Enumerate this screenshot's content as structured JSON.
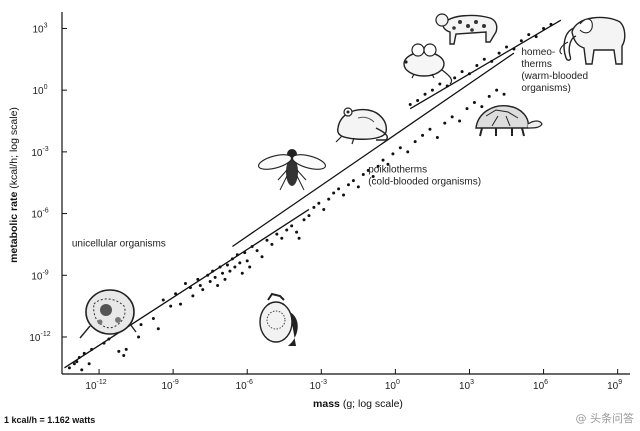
{
  "chart_data": {
    "type": "scatter",
    "title": "",
    "xlabel_bold": "mass",
    "xlabel_rest": " (g; log scale)",
    "ylabel_bold": "metabolic rate",
    "ylabel_rest": " (kcal/h; log scale)",
    "x_scale": "log",
    "y_scale": "log",
    "x_tick_exponents": [
      -12,
      -9,
      -6,
      -3,
      0,
      3,
      6,
      9
    ],
    "y_tick_exponents": [
      -12,
      -9,
      -6,
      -3,
      0,
      3
    ],
    "tick_base": "10",
    "xlim_exponent": [
      -13.5,
      9.5
    ],
    "ylim_exponent": [
      -13.8,
      3.8
    ],
    "grid": false,
    "legend": "none",
    "fit_lines": [
      {
        "from": [
          -13.4,
          -13.5
        ],
        "to": [
          -3.5,
          -5.8
        ]
      },
      {
        "from": [
          -6.6,
          -7.6
        ],
        "to": [
          4.8,
          1.8
        ]
      },
      {
        "from": [
          0.6,
          -0.9
        ],
        "to": [
          6.7,
          3.4
        ]
      }
    ],
    "series": [
      {
        "points": [
          [
            -13.2,
            -13.5
          ],
          [
            -13.0,
            -13.3
          ],
          [
            -12.9,
            -13.2
          ],
          [
            -12.8,
            -13.0
          ],
          [
            -12.6,
            -12.8
          ],
          [
            -12.4,
            -13.3
          ],
          [
            -12.7,
            -13.6
          ],
          [
            -12.3,
            -12.6
          ],
          [
            -11.8,
            -12.3
          ],
          [
            -11.6,
            -12.1
          ],
          [
            -11.2,
            -12.7
          ],
          [
            -11.0,
            -12.9
          ],
          [
            -10.9,
            -12.6
          ],
          [
            -10.4,
            -12.0
          ],
          [
            -10.3,
            -11.4
          ],
          [
            -9.8,
            -11.1
          ],
          [
            -9.6,
            -11.6
          ],
          [
            -9.4,
            -10.2
          ],
          [
            -9.1,
            -10.5
          ],
          [
            -8.9,
            -9.9
          ],
          [
            -8.7,
            -10.4
          ],
          [
            -8.5,
            -9.4
          ],
          [
            -8.3,
            -9.6
          ],
          [
            -8.2,
            -10.0
          ],
          [
            -8.0,
            -9.2
          ],
          [
            -7.9,
            -9.5
          ],
          [
            -7.8,
            -9.7
          ],
          [
            -7.6,
            -9.0
          ],
          [
            -7.5,
            -9.3
          ],
          [
            -7.4,
            -8.8
          ],
          [
            -7.3,
            -9.1
          ],
          [
            -7.2,
            -9.5
          ],
          [
            -7.1,
            -8.6
          ],
          [
            -7.0,
            -8.9
          ],
          [
            -6.9,
            -9.2
          ],
          [
            -6.8,
            -8.5
          ],
          [
            -6.7,
            -8.8
          ],
          [
            -6.6,
            -8.2
          ],
          [
            -6.5,
            -8.6
          ],
          [
            -6.4,
            -8.0
          ],
          [
            -6.3,
            -8.4
          ],
          [
            -6.2,
            -8.9
          ],
          [
            -6.1,
            -7.9
          ],
          [
            -6.0,
            -8.3
          ],
          [
            -5.9,
            -8.6
          ],
          [
            -5.8,
            -7.6
          ],
          [
            -5.6,
            -7.8
          ],
          [
            -5.4,
            -8.1
          ],
          [
            -5.2,
            -7.3
          ],
          [
            -5.0,
            -7.5
          ],
          [
            -4.8,
            -7.0
          ],
          [
            -4.6,
            -7.2
          ],
          [
            -4.4,
            -6.8
          ],
          [
            -4.2,
            -6.6
          ],
          [
            -4.0,
            -6.9
          ],
          [
            -3.9,
            -7.2
          ],
          [
            -3.7,
            -6.3
          ],
          [
            -3.5,
            -6.1
          ],
          [
            -3.3,
            -5.7
          ],
          [
            -3.1,
            -5.5
          ],
          [
            -2.9,
            -5.8
          ],
          [
            -2.7,
            -5.3
          ],
          [
            -2.5,
            -5.0
          ],
          [
            -2.3,
            -4.8
          ],
          [
            -2.1,
            -5.1
          ],
          [
            -1.9,
            -4.6
          ],
          [
            -1.7,
            -4.4
          ],
          [
            -1.5,
            -4.7
          ],
          [
            -1.3,
            -4.1
          ],
          [
            -1.1,
            -3.9
          ],
          [
            -0.9,
            -4.2
          ],
          [
            -0.7,
            -3.7
          ],
          [
            -0.5,
            -3.4
          ],
          [
            -0.3,
            -3.6
          ],
          [
            -0.1,
            -3.1
          ],
          [
            0.2,
            -2.8
          ],
          [
            0.5,
            -3.0
          ],
          [
            0.8,
            -2.5
          ],
          [
            1.1,
            -2.2
          ],
          [
            1.4,
            -1.9
          ],
          [
            1.7,
            -2.3
          ],
          [
            2.0,
            -1.6
          ],
          [
            2.3,
            -1.3
          ],
          [
            2.6,
            -1.5
          ],
          [
            2.9,
            -0.9
          ],
          [
            3.2,
            -0.6
          ],
          [
            3.5,
            -0.8
          ],
          [
            3.8,
            -0.3
          ],
          [
            4.1,
            0.0
          ],
          [
            4.4,
            -0.2
          ],
          [
            0.6,
            -0.7
          ],
          [
            0.9,
            -0.5
          ],
          [
            1.2,
            -0.2
          ],
          [
            1.5,
            0.0
          ],
          [
            1.8,
            0.3
          ],
          [
            2.1,
            0.2
          ],
          [
            2.4,
            0.6
          ],
          [
            2.7,
            0.9
          ],
          [
            3.0,
            0.8
          ],
          [
            3.3,
            1.2
          ],
          [
            3.6,
            1.5
          ],
          [
            3.9,
            1.4
          ],
          [
            4.2,
            1.8
          ],
          [
            4.5,
            2.1
          ],
          [
            4.8,
            2.0
          ],
          [
            5.1,
            2.4
          ],
          [
            5.4,
            2.7
          ],
          [
            5.7,
            2.6
          ],
          [
            6.0,
            3.0
          ],
          [
            6.3,
            3.2
          ]
        ]
      }
    ],
    "annotations": [
      {
        "id": "unicellular",
        "lines": [
          "unicellular organisms"
        ],
        "x_exp": -13.1,
        "y_exp": -7.6
      },
      {
        "id": "poikilotherms",
        "lines": [
          "poikilotherms",
          "(cold-blooded organisms)"
        ],
        "x_exp": -1.1,
        "y_exp": -4.0
      },
      {
        "id": "homeotherms",
        "lines": [
          "homeo-",
          "therms",
          "(warm-blooded",
          "organisms)"
        ],
        "x_exp": 5.1,
        "y_exp": 1.7
      }
    ],
    "organism_icons": [
      "amoeba-icon",
      "paramecium-icon",
      "fly-icon",
      "frog-icon",
      "mouse-icon",
      "tortoise-icon",
      "leopard-icon",
      "elephant-icon"
    ]
  },
  "footer_note": "1 kcal/h = 1.162 watts",
  "watermark": "@ 头条问答"
}
